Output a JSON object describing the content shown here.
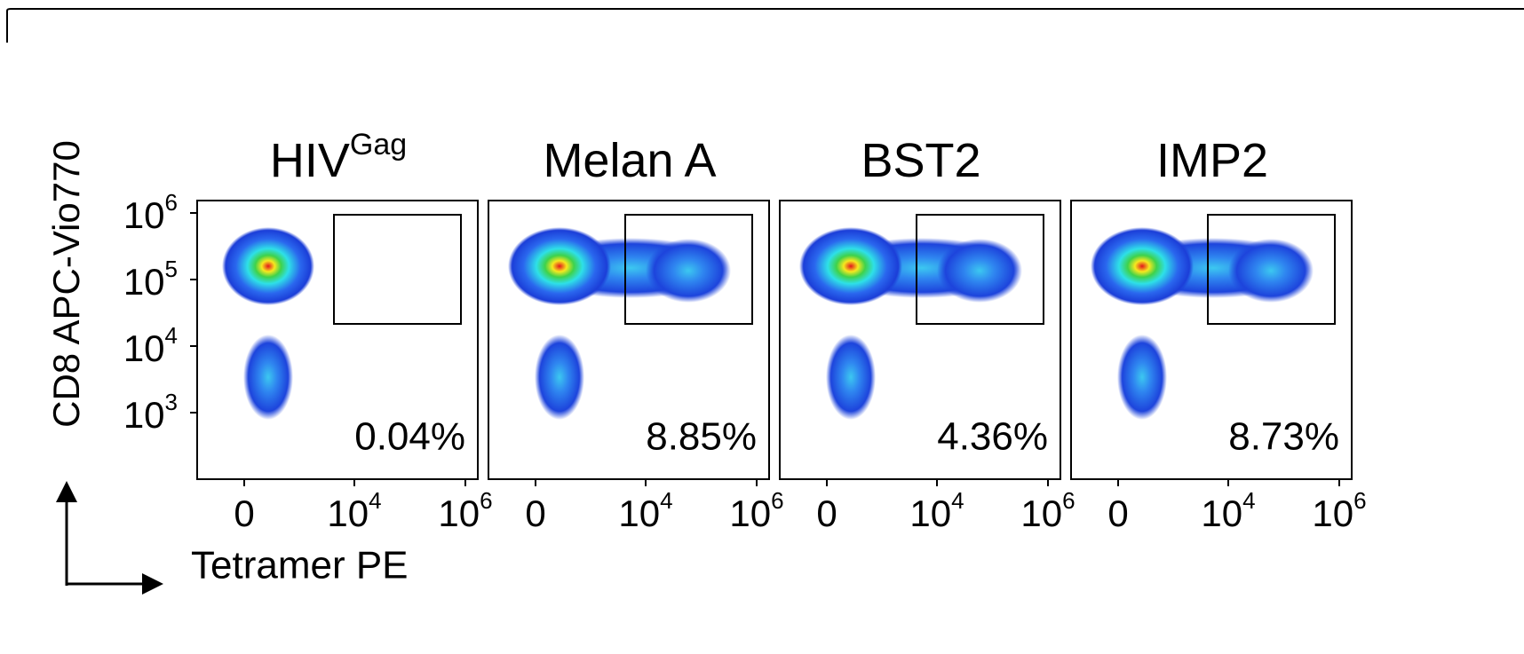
{
  "figure": {
    "y_axis_label": "CD8 APC-Vio770",
    "x_axis_label": "Tetramer PE",
    "y_ticks": [
      {
        "base": "10",
        "exp": "6"
      },
      {
        "base": "10",
        "exp": "5"
      },
      {
        "base": "10",
        "exp": "4"
      },
      {
        "base": "10",
        "exp": "3"
      }
    ],
    "x_ticks": [
      {
        "base": "0"
      },
      {
        "base": "10",
        "exp": "4"
      },
      {
        "base": "10",
        "exp": "6"
      }
    ],
    "panels": [
      {
        "title": "HIV",
        "title_sup": "Gag",
        "color": "#a6a6a6",
        "gate_percent": "0.04%"
      },
      {
        "title": "Melan A",
        "color": "#1f3fe0",
        "gate_percent": "8.85%"
      },
      {
        "title": "BST2",
        "color": "#e2261f",
        "gate_percent": "4.36%"
      },
      {
        "title": "IMP2",
        "color": "#45b474",
        "gate_percent": "8.73%"
      }
    ]
  }
}
